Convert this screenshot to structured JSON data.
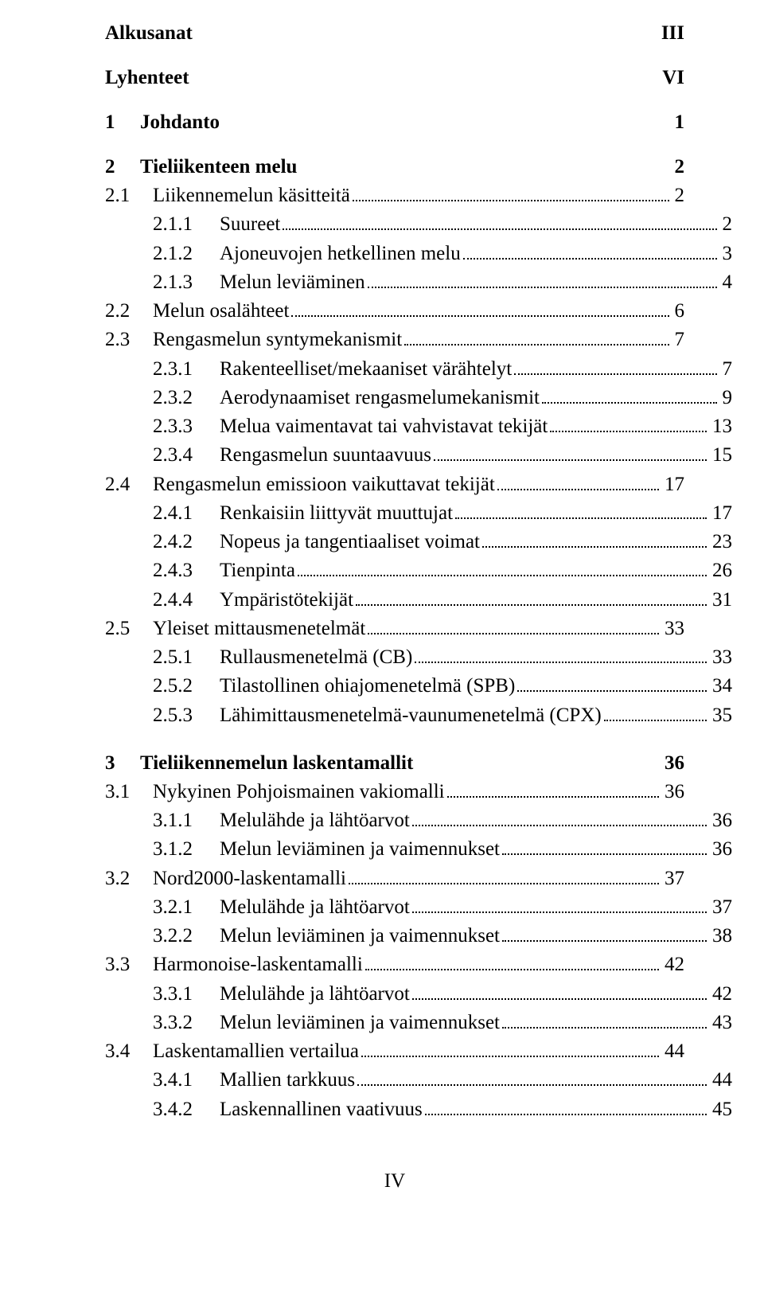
{
  "footer": "IV",
  "top": [
    {
      "title": "Alkusanat",
      "page": "III"
    },
    {
      "title": "Lyhenteet",
      "page": "VI"
    }
  ],
  "chapters": [
    {
      "num": "1",
      "title": "Johdanto",
      "page": "1",
      "sections": []
    },
    {
      "num": "2",
      "title": "Tieliikenteen melu",
      "page": "2",
      "sections": [
        {
          "num": "2.1",
          "title": "Liikennemelun käsitteitä",
          "page": "2",
          "subs": [
            {
              "num": "2.1.1",
              "title": "Suureet",
              "page": "2"
            },
            {
              "num": "2.1.2",
              "title": "Ajoneuvojen hetkellinen melu",
              "page": "3"
            },
            {
              "num": "2.1.3",
              "title": "Melun leviäminen",
              "page": "4"
            }
          ]
        },
        {
          "num": "2.2",
          "title": "Melun osalähteet",
          "page": "6",
          "subs": []
        },
        {
          "num": "2.3",
          "title": "Rengasmelun syntymekanismit",
          "page": "7",
          "subs": [
            {
              "num": "2.3.1",
              "title": "Rakenteelliset/mekaaniset värähtelyt",
              "page": "7"
            },
            {
              "num": "2.3.2",
              "title": "Aerodynaamiset rengasmelumekanismit",
              "page": "9"
            },
            {
              "num": "2.3.3",
              "title": "Melua vaimentavat tai vahvistavat tekijät",
              "page": "13"
            },
            {
              "num": "2.3.4",
              "title": "Rengasmelun suuntaavuus",
              "page": "15"
            }
          ]
        },
        {
          "num": "2.4",
          "title": "Rengasmelun emissioon vaikuttavat tekijät",
          "page": "17",
          "subs": [
            {
              "num": "2.4.1",
              "title": "Renkaisiin liittyvät muuttujat",
              "page": "17"
            },
            {
              "num": "2.4.2",
              "title": "Nopeus ja tangentiaaliset voimat",
              "page": "23"
            },
            {
              "num": "2.4.3",
              "title": "Tienpinta",
              "page": "26"
            },
            {
              "num": "2.4.4",
              "title": "Ympäristötekijät",
              "page": "31"
            }
          ]
        },
        {
          "num": "2.5",
          "title": "Yleiset mittausmenetelmät",
          "page": "33",
          "subs": [
            {
              "num": "2.5.1",
              "title": "Rullausmenetelmä (CB)",
              "page": "33"
            },
            {
              "num": "2.5.2",
              "title": "Tilastollinen ohiajomenetelmä (SPB)",
              "page": "34"
            },
            {
              "num": "2.5.3",
              "title": "Lähimittausmenetelmä-vaunumenetelmä (CPX)",
              "page": "35"
            }
          ]
        }
      ]
    },
    {
      "num": "3",
      "title": "Tieliikennemelun laskentamallit",
      "page": "36",
      "sections": [
        {
          "num": "3.1",
          "title": "Nykyinen Pohjoismainen vakiomalli",
          "page": "36",
          "subs": [
            {
              "num": "3.1.1",
              "title": "Melulähde ja lähtöarvot",
              "page": "36"
            },
            {
              "num": "3.1.2",
              "title": "Melun leviäminen ja vaimennukset",
              "page": "36"
            }
          ]
        },
        {
          "num": "3.2",
          "title": "Nord2000-laskentamalli",
          "page": "37",
          "subs": [
            {
              "num": "3.2.1",
              "title": "Melulähde ja lähtöarvot",
              "page": "37"
            },
            {
              "num": "3.2.2",
              "title": "Melun leviäminen ja vaimennukset",
              "page": "38"
            }
          ]
        },
        {
          "num": "3.3",
          "title": "Harmonoise-laskentamalli",
          "page": "42",
          "subs": [
            {
              "num": "3.3.1",
              "title": "Melulähde ja lähtöarvot",
              "page": "42"
            },
            {
              "num": "3.3.2",
              "title": "Melun leviäminen ja vaimennukset",
              "page": "43"
            }
          ]
        },
        {
          "num": "3.4",
          "title": "Laskentamallien vertailua",
          "page": "44",
          "subs": [
            {
              "num": "3.4.1",
              "title": "Mallien tarkkuus",
              "page": "44"
            },
            {
              "num": "3.4.2",
              "title": "Laskennallinen vaativuus",
              "page": "45"
            }
          ]
        }
      ]
    }
  ]
}
